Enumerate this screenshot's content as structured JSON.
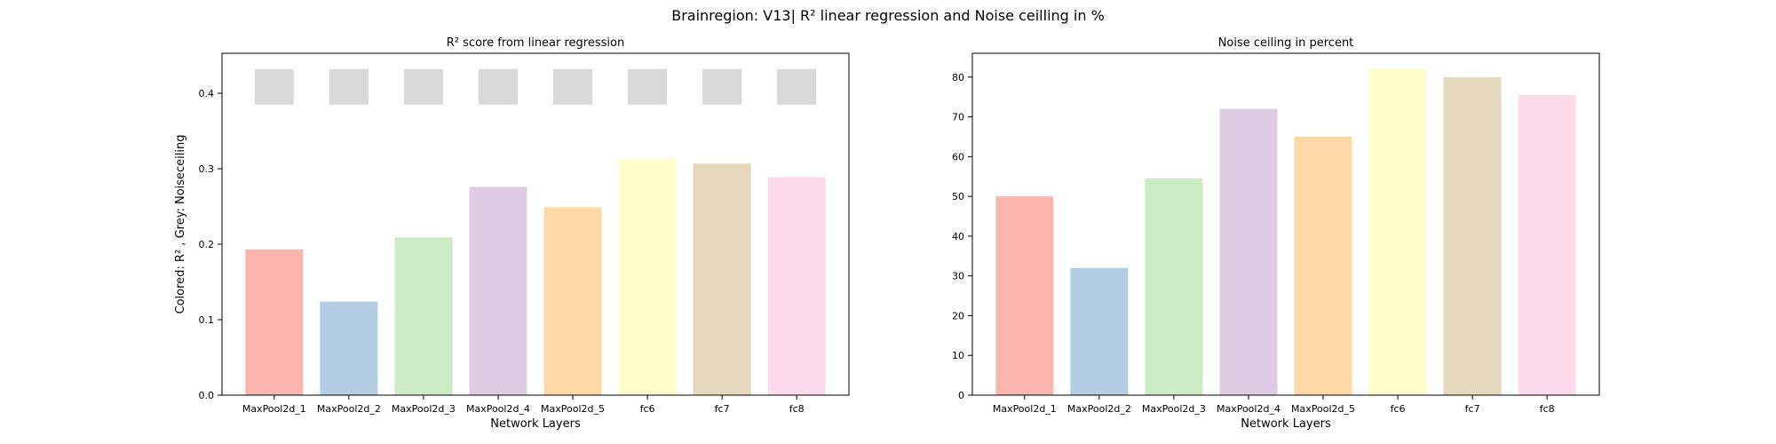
{
  "figure": {
    "title": "Brainregion: V13| R² linear regression and Noise ceilling in %"
  },
  "colors": [
    "#fbb4ae",
    "#b3cde3",
    "#ccebc5",
    "#decbe4",
    "#fed9a6",
    "#ffffcc",
    "#e5d8bd",
    "#fddaec"
  ],
  "noise_color": "#d9d9d9",
  "chart_data": [
    {
      "type": "bar",
      "title": "R² score from linear regression",
      "xlabel": "Network Layers",
      "ylabel": "Colored: R² , Grey: Noiseceiling",
      "categories": [
        "MaxPool2d_1",
        "MaxPool2d_2",
        "MaxPool2d_3",
        "MaxPool2d_4",
        "MaxPool2d_5",
        "fc6",
        "fc7",
        "fc8"
      ],
      "ylim": [
        0,
        0.453
      ],
      "yticks": [
        0.0,
        0.1,
        0.2,
        0.3,
        0.4
      ],
      "ytick_labels": [
        "0.0",
        "0.1",
        "0.2",
        "0.3",
        "0.4"
      ],
      "grid": false,
      "series": [
        {
          "values": [
            0.193,
            0.124,
            0.209,
            0.276,
            0.249,
            0.313,
            0.307,
            0.289
          ]
        }
      ],
      "noise_ceiling": {
        "lower": [
          0.385,
          0.385,
          0.385,
          0.385,
          0.385,
          0.385,
          0.385,
          0.385
        ],
        "upper": [
          0.432,
          0.432,
          0.432,
          0.432,
          0.432,
          0.432,
          0.432,
          0.432
        ]
      }
    },
    {
      "type": "bar",
      "title": "Noise ceiling in percent",
      "xlabel": "Network Layers",
      "ylabel": "",
      "categories": [
        "MaxPool2d_1",
        "MaxPool2d_2",
        "MaxPool2d_3",
        "MaxPool2d_4",
        "MaxPool2d_5",
        "fc6",
        "fc7",
        "fc8"
      ],
      "ylim": [
        0,
        86
      ],
      "yticks": [
        0,
        10,
        20,
        30,
        40,
        50,
        60,
        70,
        80
      ],
      "ytick_labels": [
        "0",
        "10",
        "20",
        "30",
        "40",
        "50",
        "60",
        "70",
        "80"
      ],
      "grid": false,
      "series": [
        {
          "values": [
            50.0,
            32.0,
            54.5,
            72.0,
            65.0,
            82.0,
            80.0,
            75.5
          ]
        }
      ]
    }
  ]
}
